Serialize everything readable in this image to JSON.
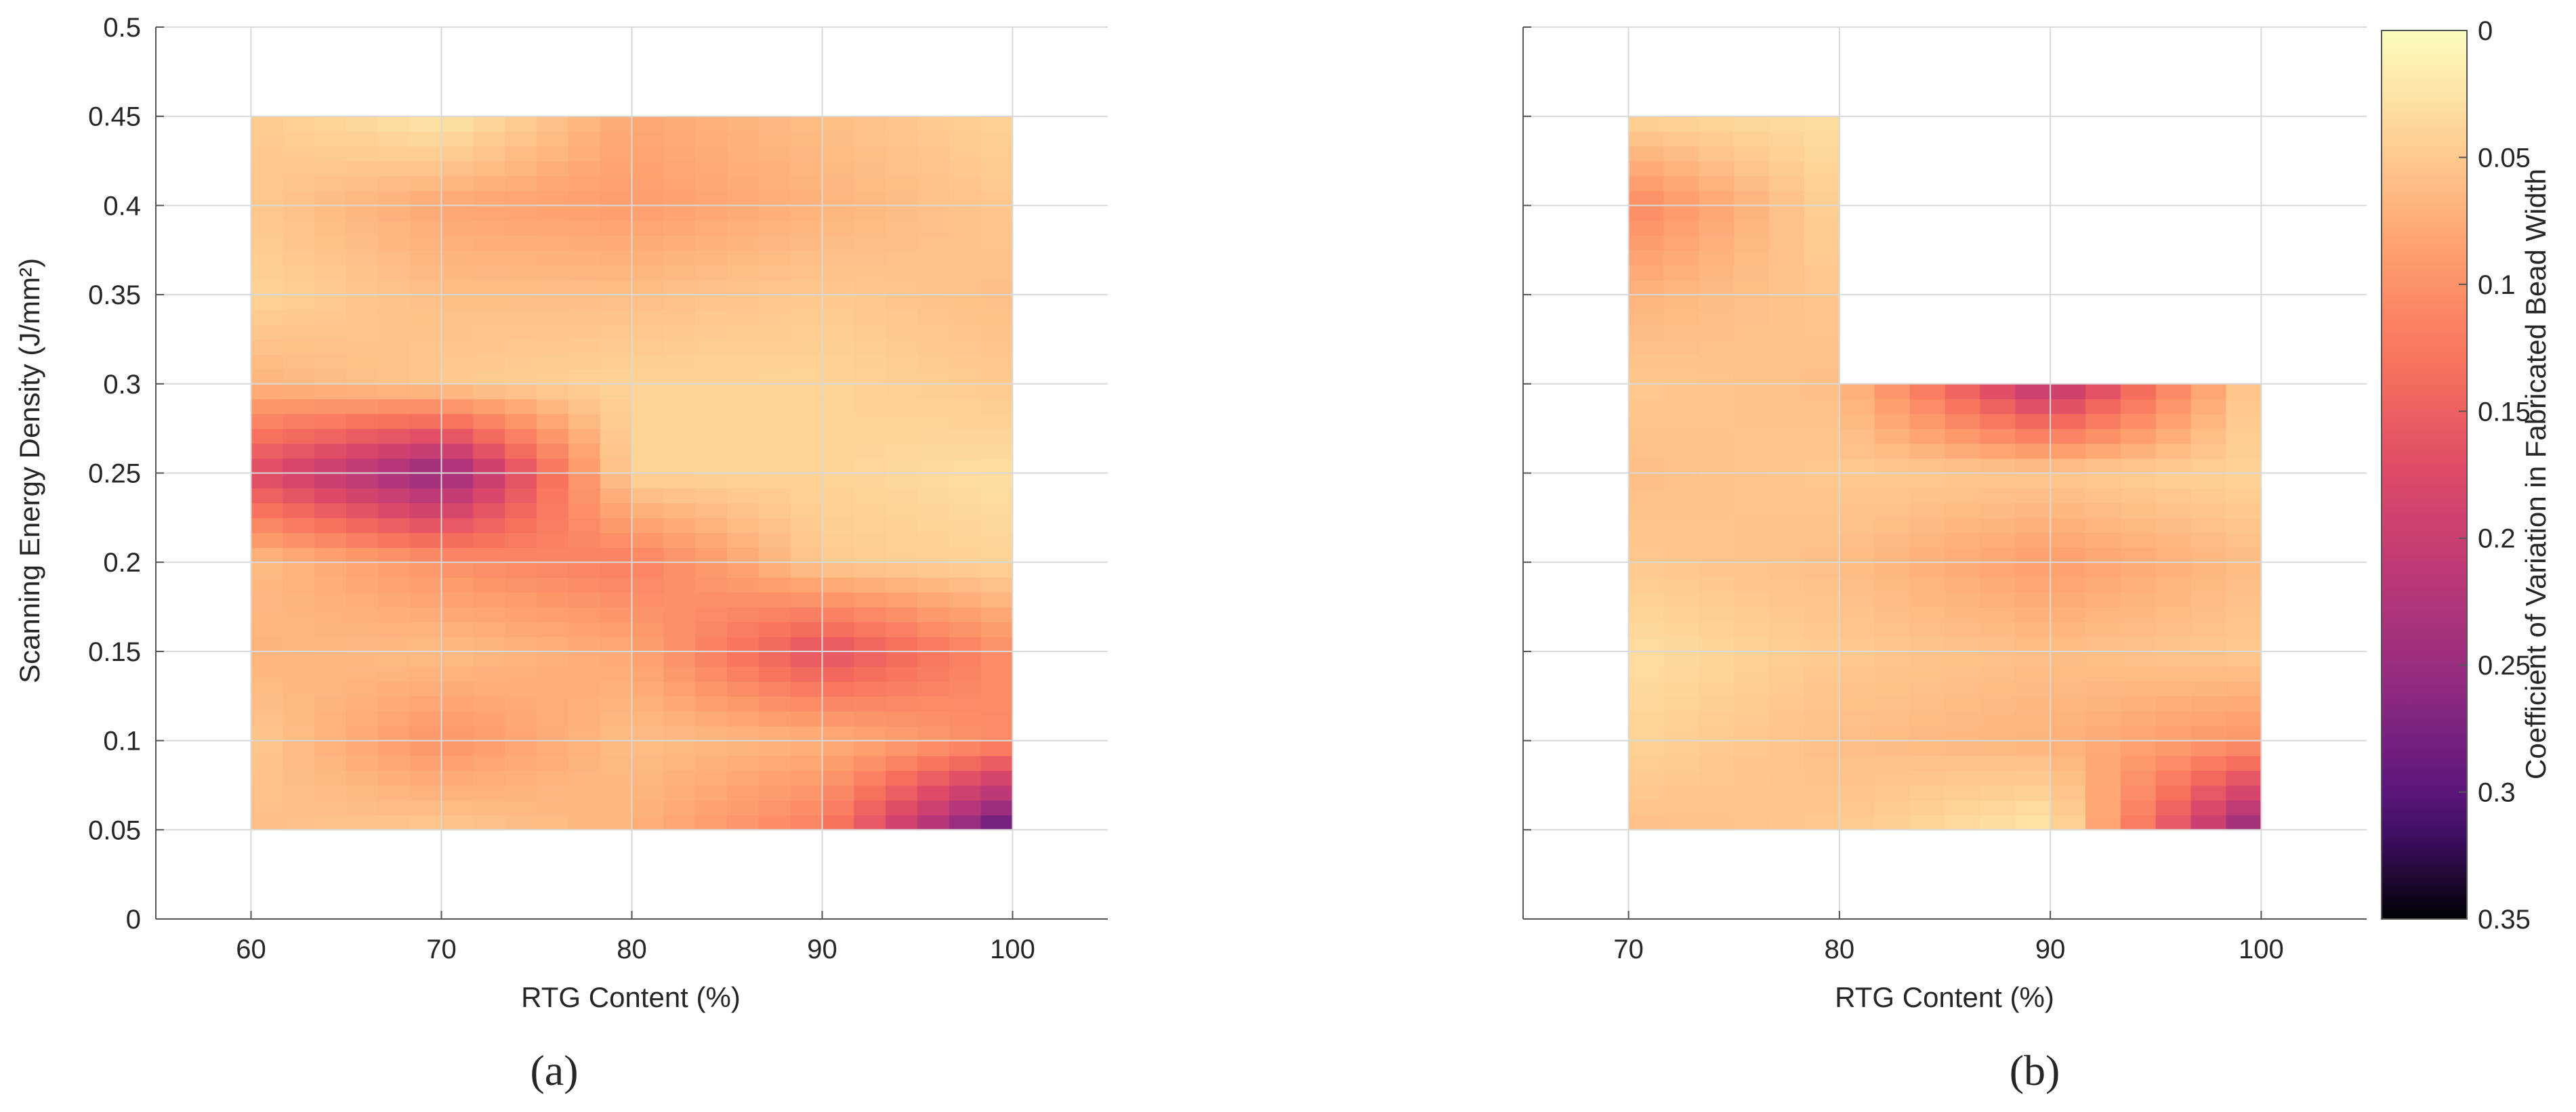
{
  "chart_data": [
    {
      "type": "heatmap",
      "panel_label": "(a)",
      "xlabel": "RTG Content (%)",
      "ylabel": "Scanning Energy Density (J/mm²)",
      "xlim": [
        55,
        105
      ],
      "ylim": [
        0,
        0.5
      ],
      "x_ticks": [
        60,
        70,
        80,
        90,
        100
      ],
      "y_ticks": [
        0,
        0.05,
        0.1,
        0.15,
        0.2,
        0.25,
        0.3,
        0.35,
        0.4,
        0.45,
        0.5
      ],
      "x_tick_labels": [
        "60",
        "70",
        "80",
        "90",
        "100"
      ],
      "y_tick_labels": [
        "0",
        "0.05",
        "0.1",
        "0.15",
        "0.2",
        "0.25",
        "0.3",
        "0.35",
        "0.4",
        "0.45",
        "0.5"
      ],
      "grid": true,
      "x": [
        60,
        70,
        80,
        90,
        100
      ],
      "y": [
        0.05,
        0.1,
        0.15,
        0.2,
        0.25,
        0.3,
        0.35,
        0.4,
        0.45
      ],
      "z": [
        [
          0.06,
          0.05,
          0.07,
          0.12,
          0.31
        ],
        [
          0.05,
          0.1,
          0.06,
          0.07,
          0.11
        ],
        [
          0.07,
          0.06,
          0.08,
          0.17,
          0.1
        ],
        [
          0.06,
          0.1,
          0.12,
          0.05,
          0.04
        ],
        [
          0.17,
          0.26,
          0.04,
          0.04,
          0.03
        ],
        [
          0.07,
          0.05,
          0.04,
          0.04,
          0.05
        ],
        [
          0.04,
          0.06,
          0.06,
          0.05,
          0.06
        ],
        [
          0.05,
          0.08,
          0.09,
          0.07,
          0.05
        ],
        [
          0.05,
          0.02,
          0.08,
          0.06,
          0.04
        ]
      ]
    },
    {
      "type": "heatmap",
      "panel_label": "(b)",
      "xlabel": "RTG Content (%)",
      "ylabel": "",
      "xlim": [
        65,
        105
      ],
      "ylim": [
        0,
        0.5
      ],
      "x_ticks": [
        70,
        80,
        90,
        100
      ],
      "y_ticks": [
        0,
        0.05,
        0.1,
        0.15,
        0.2,
        0.25,
        0.3,
        0.35,
        0.4,
        0.45,
        0.5
      ],
      "x_tick_labels": [
        "70",
        "80",
        "90",
        "100"
      ],
      "y_tick_labels": [],
      "grid": true,
      "x": [
        70,
        80,
        90,
        100
      ],
      "y": [
        0.05,
        0.1,
        0.15,
        0.2,
        0.25,
        0.3,
        0.35,
        0.4,
        0.45
      ],
      "z": [
        [
          0.06,
          0.05,
          0.02,
          0.27
        ],
        [
          0.04,
          0.06,
          0.07,
          0.1
        ],
        [
          0.03,
          0.05,
          0.06,
          0.05
        ],
        [
          0.05,
          0.06,
          0.09,
          0.06
        ],
        [
          0.06,
          0.05,
          0.05,
          0.04
        ],
        [
          0.05,
          0.06,
          0.22,
          0.04
        ],
        [
          0.07,
          0.05,
          null,
          null
        ],
        [
          0.11,
          0.04,
          null,
          null
        ],
        [
          0.04,
          0.03,
          null,
          null
        ]
      ]
    }
  ],
  "colorbar": {
    "label": "Coefficient of Variation in Fabricated Bead Width",
    "min": 0,
    "max": 0.35,
    "reversed": true,
    "colormap": "magma",
    "tick_values": [
      0,
      0.05,
      0.1,
      0.15,
      0.2,
      0.25,
      0.3,
      0.35
    ],
    "tick_labels": [
      "0",
      "0.05",
      "0.1",
      "0.15",
      "0.2",
      "0.25",
      "0.3",
      "0.35"
    ]
  },
  "colors": {
    "axis": "#555555",
    "grid": "#d9d9d9",
    "text": "#262626"
  }
}
